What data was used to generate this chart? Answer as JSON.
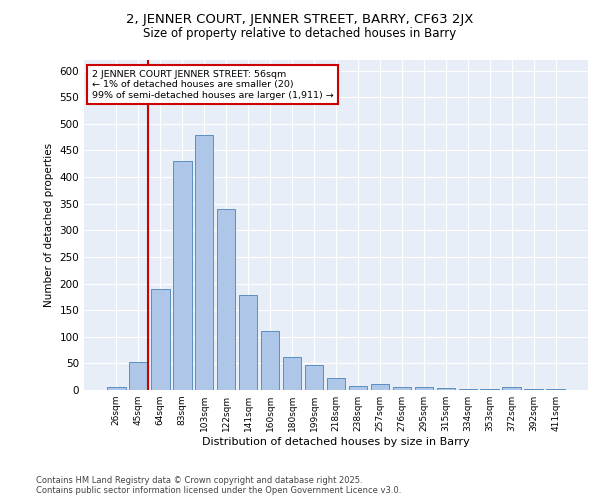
{
  "title_line1": "2, JENNER COURT, JENNER STREET, BARRY, CF63 2JX",
  "title_line2": "Size of property relative to detached houses in Barry",
  "xlabel": "Distribution of detached houses by size in Barry",
  "ylabel": "Number of detached properties",
  "categories": [
    "26sqm",
    "45sqm",
    "64sqm",
    "83sqm",
    "103sqm",
    "122sqm",
    "141sqm",
    "160sqm",
    "180sqm",
    "199sqm",
    "218sqm",
    "238sqm",
    "257sqm",
    "276sqm",
    "295sqm",
    "315sqm",
    "334sqm",
    "353sqm",
    "372sqm",
    "392sqm",
    "411sqm"
  ],
  "values": [
    5,
    52,
    190,
    430,
    480,
    340,
    178,
    110,
    62,
    47,
    22,
    7,
    11,
    6,
    5,
    4,
    2,
    1,
    5,
    1,
    2
  ],
  "bar_color": "#aec6e8",
  "bar_edge_color": "#5a8fc2",
  "vline_color": "#cc0000",
  "annotation_title": "2 JENNER COURT JENNER STREET: 56sqm",
  "annotation_line2": "← 1% of detached houses are smaller (20)",
  "annotation_line3": "99% of semi-detached houses are larger (1,911) →",
  "annotation_box_color": "#cc0000",
  "ylim": [
    0,
    620
  ],
  "yticks": [
    0,
    50,
    100,
    150,
    200,
    250,
    300,
    350,
    400,
    450,
    500,
    550,
    600
  ],
  "bg_color": "#e8eef8",
  "footer_line1": "Contains HM Land Registry data © Crown copyright and database right 2025.",
  "footer_line2": "Contains public sector information licensed under the Open Government Licence v3.0."
}
